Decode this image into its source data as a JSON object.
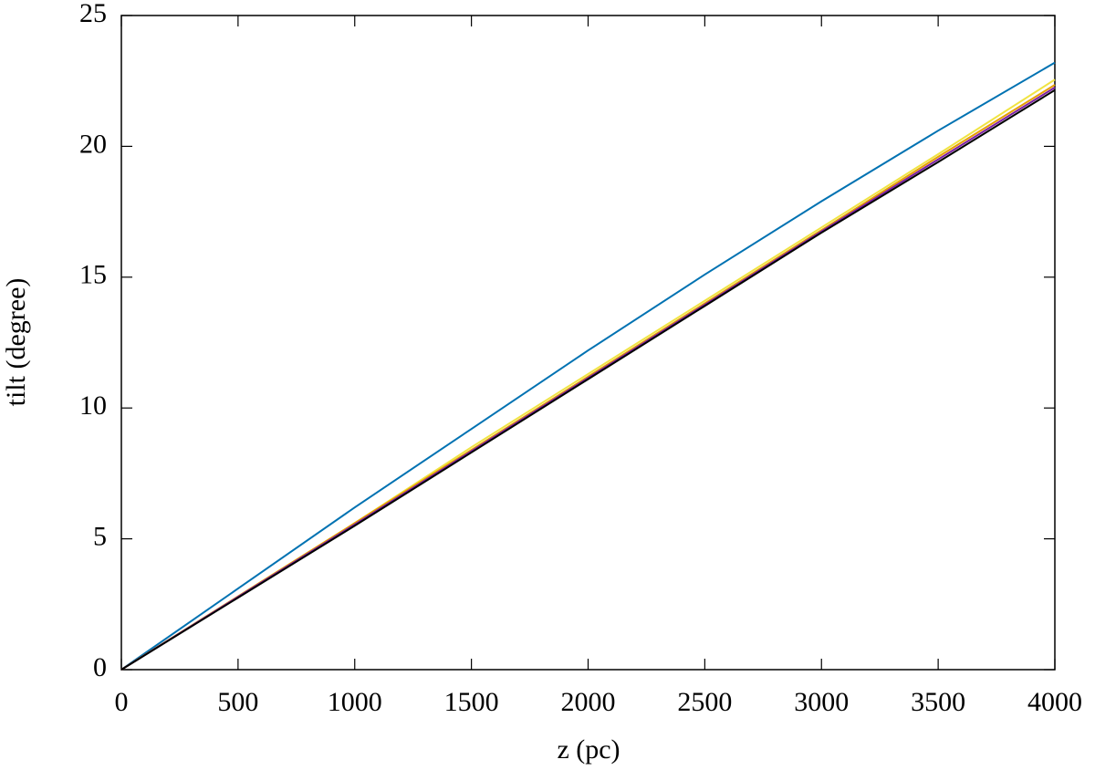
{
  "chart_data": {
    "type": "line",
    "x_label": "z (pc)",
    "y_label": "tilt (degree)",
    "x": [
      0,
      500,
      1000,
      1500,
      2000,
      2500,
      3000,
      3500,
      4000
    ],
    "series": [
      {
        "color": "#0072b2",
        "values": [
          0,
          3.1,
          6.2,
          9.2,
          12.2,
          15.1,
          17.9,
          20.6,
          23.2
        ]
      },
      {
        "color": "#f0e442",
        "values": [
          0,
          2.8,
          5.6,
          8.5,
          11.3,
          14.1,
          16.9,
          19.7,
          22.55
        ]
      },
      {
        "color": "#e69f00",
        "values": [
          0,
          2.8,
          5.6,
          8.4,
          11.2,
          14.0,
          16.8,
          19.6,
          22.35
        ]
      },
      {
        "color": "#7b1fa2",
        "values": [
          0,
          2.78,
          5.55,
          8.35,
          11.15,
          13.95,
          16.75,
          19.5,
          22.25
        ]
      },
      {
        "color": "#000000",
        "values": [
          0,
          2.75,
          5.5,
          8.3,
          11.1,
          13.9,
          16.7,
          19.4,
          22.15
        ]
      }
    ],
    "xlim": [
      0,
      4000
    ],
    "xticks": [
      0,
      500,
      1000,
      1500,
      2000,
      2500,
      3000,
      3500,
      4000
    ],
    "ylim": [
      0,
      25
    ],
    "yticks": [
      0,
      5,
      10,
      15,
      20,
      25
    ]
  }
}
